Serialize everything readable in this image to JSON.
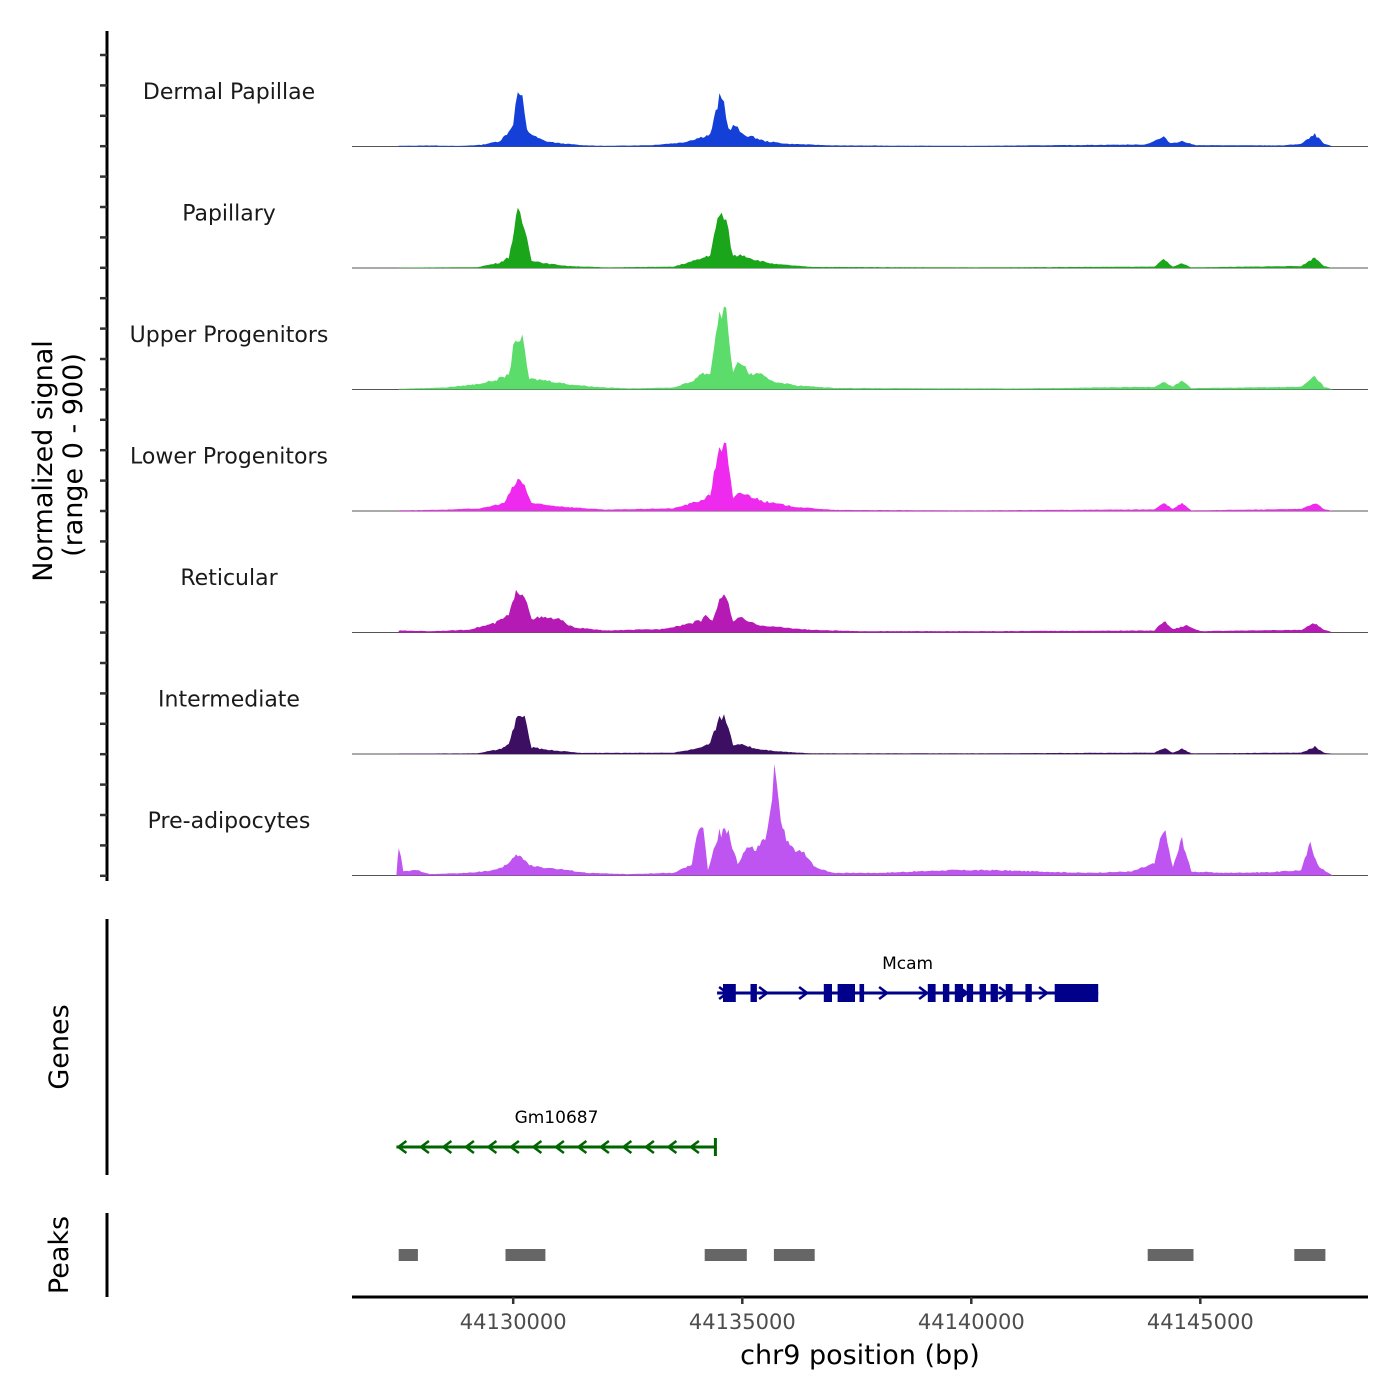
{
  "chart_data": {
    "type": "area",
    "title": "",
    "ylabel_lines": [
      "Normalized signal",
      "(range 0 - 900)"
    ],
    "xlabel": "chr9 position (bp)",
    "chromosome": "chr9",
    "xlim": [
      44126480,
      44148660
    ],
    "ylim": [
      0,
      900
    ],
    "x_ticks": [
      44130000,
      44135000,
      44140000,
      44145000
    ],
    "x_tick_labels": [
      "44130000",
      "44135000",
      "44140000",
      "44145000"
    ],
    "grid": false,
    "legend": "none",
    "tracks": [
      {
        "name": "Dermal Papillae",
        "color": "#1440d8",
        "points": [
          [
            44127500,
            5
          ],
          [
            44128200,
            8
          ],
          [
            44128800,
            4
          ],
          [
            44129300,
            12
          ],
          [
            44129700,
            40
          ],
          [
            44129900,
            110
          ],
          [
            44130000,
            180
          ],
          [
            44130100,
            415
          ],
          [
            44130200,
            350
          ],
          [
            44130300,
            120
          ],
          [
            44130500,
            70
          ],
          [
            44130700,
            40
          ],
          [
            44131000,
            25
          ],
          [
            44131500,
            10
          ],
          [
            44132000,
            5
          ],
          [
            44133000,
            10
          ],
          [
            44133700,
            30
          ],
          [
            44134100,
            70
          ],
          [
            44134300,
            90
          ],
          [
            44134500,
            360
          ],
          [
            44134600,
            330
          ],
          [
            44134700,
            130
          ],
          [
            44134850,
            160
          ],
          [
            44135000,
            90
          ],
          [
            44135200,
            75
          ],
          [
            44135500,
            40
          ],
          [
            44136000,
            20
          ],
          [
            44137000,
            8
          ],
          [
            44140000,
            5
          ],
          [
            44143800,
            15
          ],
          [
            44144200,
            70
          ],
          [
            44144350,
            25
          ],
          [
            44144600,
            40
          ],
          [
            44144900,
            10
          ],
          [
            44146800,
            8
          ],
          [
            44147200,
            20
          ],
          [
            44147500,
            90
          ],
          [
            44147700,
            20
          ],
          [
            44147900,
            0
          ]
        ]
      },
      {
        "name": "Papillary",
        "color": "#1aa51a",
        "points": [
          [
            44127500,
            3
          ],
          [
            44129200,
            6
          ],
          [
            44129700,
            40
          ],
          [
            44129900,
            80
          ],
          [
            44130100,
            420
          ],
          [
            44130250,
            300
          ],
          [
            44130400,
            60
          ],
          [
            44130700,
            35
          ],
          [
            44131200,
            15
          ],
          [
            44132000,
            5
          ],
          [
            44133500,
            10
          ],
          [
            44134100,
            70
          ],
          [
            44134300,
            100
          ],
          [
            44134500,
            420
          ],
          [
            44134650,
            350
          ],
          [
            44134800,
            90
          ],
          [
            44135000,
            100
          ],
          [
            44135300,
            60
          ],
          [
            44135700,
            30
          ],
          [
            44136500,
            8
          ],
          [
            44140000,
            5
          ],
          [
            44144000,
            10
          ],
          [
            44144200,
            65
          ],
          [
            44144400,
            10
          ],
          [
            44144600,
            35
          ],
          [
            44144800,
            5
          ],
          [
            44147200,
            15
          ],
          [
            44147500,
            80
          ],
          [
            44147700,
            15
          ],
          [
            44147900,
            0
          ]
        ]
      },
      {
        "name": "Upper Progenitors",
        "color": "#5cdc6a",
        "points": [
          [
            44127500,
            5
          ],
          [
            44128500,
            15
          ],
          [
            44129200,
            40
          ],
          [
            44129600,
            70
          ],
          [
            44129900,
            110
          ],
          [
            44130050,
            400
          ],
          [
            44130200,
            370
          ],
          [
            44130350,
            80
          ],
          [
            44130700,
            70
          ],
          [
            44131200,
            40
          ],
          [
            44131800,
            20
          ],
          [
            44132500,
            8
          ],
          [
            44133500,
            15
          ],
          [
            44133900,
            60
          ],
          [
            44134100,
            120
          ],
          [
            44134300,
            120
          ],
          [
            44134500,
            600
          ],
          [
            44134650,
            580
          ],
          [
            44134800,
            120
          ],
          [
            44134950,
            220
          ],
          [
            44135150,
            120
          ],
          [
            44135400,
            110
          ],
          [
            44135700,
            60
          ],
          [
            44136200,
            30
          ],
          [
            44137000,
            12
          ],
          [
            44138000,
            10
          ],
          [
            44141000,
            8
          ],
          [
            44144000,
            20
          ],
          [
            44144200,
            60
          ],
          [
            44144400,
            20
          ],
          [
            44144600,
            70
          ],
          [
            44144800,
            10
          ],
          [
            44147200,
            20
          ],
          [
            44147500,
            100
          ],
          [
            44147700,
            20
          ],
          [
            44147900,
            0
          ]
        ]
      },
      {
        "name": "Lower Progenitors",
        "color": "#ee2aee",
        "points": [
          [
            44127500,
            5
          ],
          [
            44128500,
            10
          ],
          [
            44129300,
            20
          ],
          [
            44129800,
            60
          ],
          [
            44130100,
            240
          ],
          [
            44130250,
            190
          ],
          [
            44130400,
            60
          ],
          [
            44130700,
            45
          ],
          [
            44131200,
            30
          ],
          [
            44132000,
            10
          ],
          [
            44133500,
            20
          ],
          [
            44134100,
            80
          ],
          [
            44134300,
            120
          ],
          [
            44134500,
            500
          ],
          [
            44134650,
            470
          ],
          [
            44134800,
            90
          ],
          [
            44134950,
            140
          ],
          [
            44135200,
            110
          ],
          [
            44135500,
            70
          ],
          [
            44136200,
            30
          ],
          [
            44137000,
            8
          ],
          [
            44140000,
            5
          ],
          [
            44144000,
            12
          ],
          [
            44144200,
            60
          ],
          [
            44144400,
            15
          ],
          [
            44144600,
            60
          ],
          [
            44144800,
            5
          ],
          [
            44147200,
            15
          ],
          [
            44147500,
            60
          ],
          [
            44147700,
            15
          ],
          [
            44147900,
            0
          ]
        ]
      },
      {
        "name": "Reticular",
        "color": "#b51ab5",
        "points": [
          [
            44127500,
            15
          ],
          [
            44128200,
            10
          ],
          [
            44129000,
            20
          ],
          [
            44129600,
            70
          ],
          [
            44129900,
            130
          ],
          [
            44130100,
            330
          ],
          [
            44130250,
            290
          ],
          [
            44130400,
            110
          ],
          [
            44130700,
            110
          ],
          [
            44131000,
            100
          ],
          [
            44131300,
            40
          ],
          [
            44132000,
            15
          ],
          [
            44133200,
            25
          ],
          [
            44133600,
            50
          ],
          [
            44134100,
            90
          ],
          [
            44134200,
            140
          ],
          [
            44134350,
            80
          ],
          [
            44134500,
            270
          ],
          [
            44134650,
            260
          ],
          [
            44134800,
            90
          ],
          [
            44134950,
            110
          ],
          [
            44135300,
            60
          ],
          [
            44135800,
            40
          ],
          [
            44136500,
            20
          ],
          [
            44137500,
            10
          ],
          [
            44140000,
            10
          ],
          [
            44144000,
            15
          ],
          [
            44144200,
            90
          ],
          [
            44144400,
            25
          ],
          [
            44144700,
            55
          ],
          [
            44145000,
            10
          ],
          [
            44147200,
            20
          ],
          [
            44147500,
            70
          ],
          [
            44147700,
            20
          ],
          [
            44147900,
            0
          ]
        ]
      },
      {
        "name": "Intermediate",
        "color": "#3c0f62",
        "points": [
          [
            44127500,
            3
          ],
          [
            44129200,
            5
          ],
          [
            44129700,
            35
          ],
          [
            44129900,
            70
          ],
          [
            44130100,
            300
          ],
          [
            44130250,
            260
          ],
          [
            44130400,
            50
          ],
          [
            44130800,
            30
          ],
          [
            44131500,
            8
          ],
          [
            44133500,
            10
          ],
          [
            44134100,
            45
          ],
          [
            44134300,
            80
          ],
          [
            44134500,
            280
          ],
          [
            44134650,
            260
          ],
          [
            44134800,
            60
          ],
          [
            44134950,
            80
          ],
          [
            44135300,
            40
          ],
          [
            44135800,
            20
          ],
          [
            44136500,
            5
          ],
          [
            44140000,
            5
          ],
          [
            44144000,
            10
          ],
          [
            44144200,
            45
          ],
          [
            44144400,
            10
          ],
          [
            44144600,
            40
          ],
          [
            44144800,
            5
          ],
          [
            44147200,
            10
          ],
          [
            44147500,
            55
          ],
          [
            44147700,
            10
          ],
          [
            44147900,
            0
          ]
        ]
      },
      {
        "name": "Pre-adipocytes",
        "color": "#bf55f0",
        "points": [
          [
            44127450,
            0
          ],
          [
            44127500,
            230
          ],
          [
            44127600,
            30
          ],
          [
            44127900,
            40
          ],
          [
            44128200,
            10
          ],
          [
            44129000,
            20
          ],
          [
            44129600,
            40
          ],
          [
            44129900,
            90
          ],
          [
            44130100,
            160
          ],
          [
            44130350,
            80
          ],
          [
            44130700,
            60
          ],
          [
            44131200,
            40
          ],
          [
            44131600,
            20
          ],
          [
            44132500,
            10
          ],
          [
            44133500,
            20
          ],
          [
            44133900,
            80
          ],
          [
            44134050,
            370
          ],
          [
            44134150,
            380
          ],
          [
            44134250,
            40
          ],
          [
            44134500,
            320
          ],
          [
            44134700,
            320
          ],
          [
            44134900,
            90
          ],
          [
            44135100,
            210
          ],
          [
            44135300,
            190
          ],
          [
            44135500,
            280
          ],
          [
            44135600,
            420
          ],
          [
            44135700,
            780
          ],
          [
            44135800,
            500
          ],
          [
            44136000,
            240
          ],
          [
            44136200,
            170
          ],
          [
            44136350,
            180
          ],
          [
            44136600,
            60
          ],
          [
            44137000,
            20
          ],
          [
            44138000,
            20
          ],
          [
            44139500,
            40
          ],
          [
            44140500,
            40
          ],
          [
            44141500,
            30
          ],
          [
            44142500,
            20
          ],
          [
            44143500,
            30
          ],
          [
            44144000,
            90
          ],
          [
            44144200,
            370
          ],
          [
            44144400,
            60
          ],
          [
            44144600,
            280
          ],
          [
            44144800,
            30
          ],
          [
            44145500,
            20
          ],
          [
            44146500,
            25
          ],
          [
            44147200,
            40
          ],
          [
            44147400,
            240
          ],
          [
            44147600,
            60
          ],
          [
            44147900,
            0
          ]
        ]
      }
    ],
    "genes": [
      {
        "name": "Mcam",
        "strand": "+",
        "color": "#00008b",
        "start": 44134450,
        "end": 44142770,
        "exons": [
          [
            44134580,
            44134860
          ],
          [
            44135180,
            44135320
          ],
          [
            44136780,
            44136960
          ],
          [
            44137080,
            44137460
          ],
          [
            44137560,
            44137660
          ],
          [
            44139050,
            44139220
          ],
          [
            44139380,
            44139520
          ],
          [
            44139640,
            44139820
          ],
          [
            44139900,
            44140040
          ],
          [
            44140180,
            44140320
          ],
          [
            44140420,
            44140580
          ],
          [
            44140750,
            44140900
          ],
          [
            44141180,
            44141320
          ],
          [
            44141820,
            44142770
          ]
        ],
        "row": 1
      },
      {
        "name": "Gm10687",
        "strand": "-",
        "color": "#006400",
        "start": 44127450,
        "end": 44134440,
        "exons": [
          [
            44134380,
            44134440
          ]
        ],
        "row": 2
      }
    ],
    "peaks": {
      "color": "#666666",
      "regions": [
        [
          44127500,
          44127920
        ],
        [
          44129830,
          44130700
        ],
        [
          44134180,
          44135100
        ],
        [
          44135690,
          44136580
        ],
        [
          44143850,
          44144850
        ],
        [
          44147050,
          44147730
        ]
      ]
    }
  },
  "panels": {
    "genes_label": "Genes",
    "peaks_label": "Peaks"
  }
}
